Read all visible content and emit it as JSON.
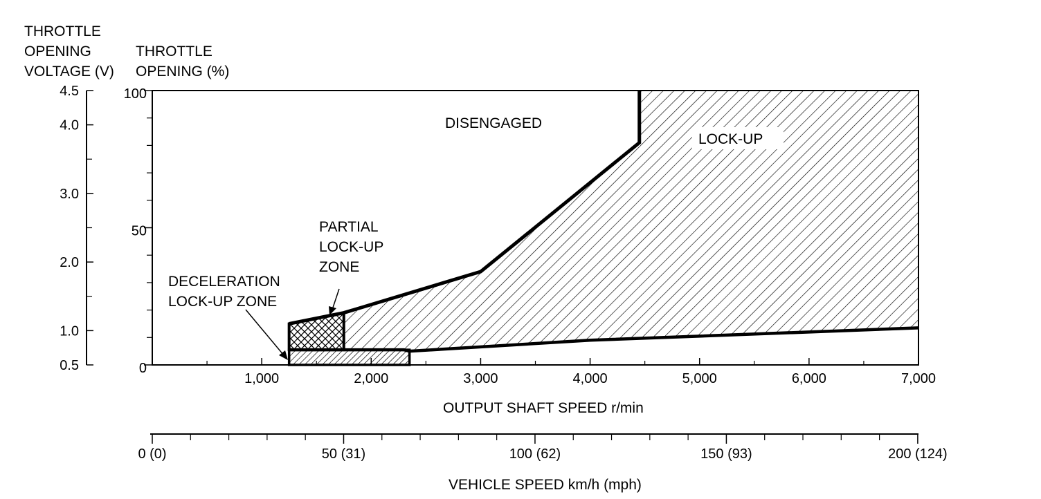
{
  "chart_data": {
    "type": "area",
    "title": "",
    "left_axis": {
      "label_lines": [
        "THROTTLE",
        "OPENING",
        "VOLTAGE (V)"
      ],
      "range": [
        0.5,
        4.5
      ],
      "ticks": [
        "4.5",
        "4.0",
        "3.0",
        "2.0",
        "1.0",
        "0.5"
      ],
      "tick_values": [
        4.5,
        4.0,
        3.0,
        2.0,
        1.0,
        0.5
      ]
    },
    "y_axis": {
      "label_lines": [
        "THROTTLE",
        "OPENING (%)"
      ],
      "range": [
        0,
        100
      ],
      "ticks": [
        "100",
        "50",
        "0"
      ],
      "tick_values": [
        100,
        50,
        0
      ]
    },
    "x_axis": {
      "label": "OUTPUT SHAFT SPEED r/min",
      "range": [
        0,
        7000
      ],
      "ticks": [
        "1,000",
        "2,000",
        "3,000",
        "4,000",
        "5,000",
        "6,000",
        "7,000"
      ],
      "tick_values": [
        1000,
        2000,
        3000,
        4000,
        5000,
        6000,
        7000
      ]
    },
    "vehicle_speed_axis": {
      "label": "VEHICLE SPEED km/h (mph)",
      "ticks": [
        "0 (0)",
        "50 (31)",
        "100 (62)",
        "150 (93)",
        "200 (124)"
      ],
      "kmh_values": [
        0,
        50,
        100,
        150,
        200
      ],
      "kmh_per_rpm": 0.0286
    },
    "regions": [
      {
        "name": "DISENGAGED",
        "pattern": "none",
        "label_lines": [
          "DISENGAGED"
        ]
      },
      {
        "name": "LOCK-UP",
        "pattern": "diagonal",
        "label_lines": [
          "LOCK-UP"
        ],
        "points": [
          [
            1750,
            5.5
          ],
          [
            2300,
            5.5
          ],
          [
            2350,
            5
          ],
          [
            4000,
            9
          ],
          [
            7000,
            13.5
          ],
          [
            7000,
            100
          ],
          [
            4450,
            100
          ],
          [
            4450,
            81
          ],
          [
            3000,
            34
          ],
          [
            1750,
            19
          ]
        ]
      },
      {
        "name": "PARTIAL LOCK-UP ZONE",
        "pattern": "crosshatch",
        "label_lines": [
          "PARTIAL",
          "LOCK-UP",
          "ZONE"
        ],
        "points": [
          [
            1250,
            5.5
          ],
          [
            1750,
            5.5
          ],
          [
            1750,
            19
          ],
          [
            1250,
            15
          ]
        ]
      },
      {
        "name": "DECELERATION LOCK-UP ZONE",
        "pattern": "fine-diagonal",
        "label_lines": [
          "DECELERATION",
          "LOCK-UP ZONE"
        ],
        "points": [
          [
            1250,
            0
          ],
          [
            2350,
            0
          ],
          [
            2350,
            5.5
          ],
          [
            1250,
            5.5
          ]
        ]
      }
    ]
  }
}
